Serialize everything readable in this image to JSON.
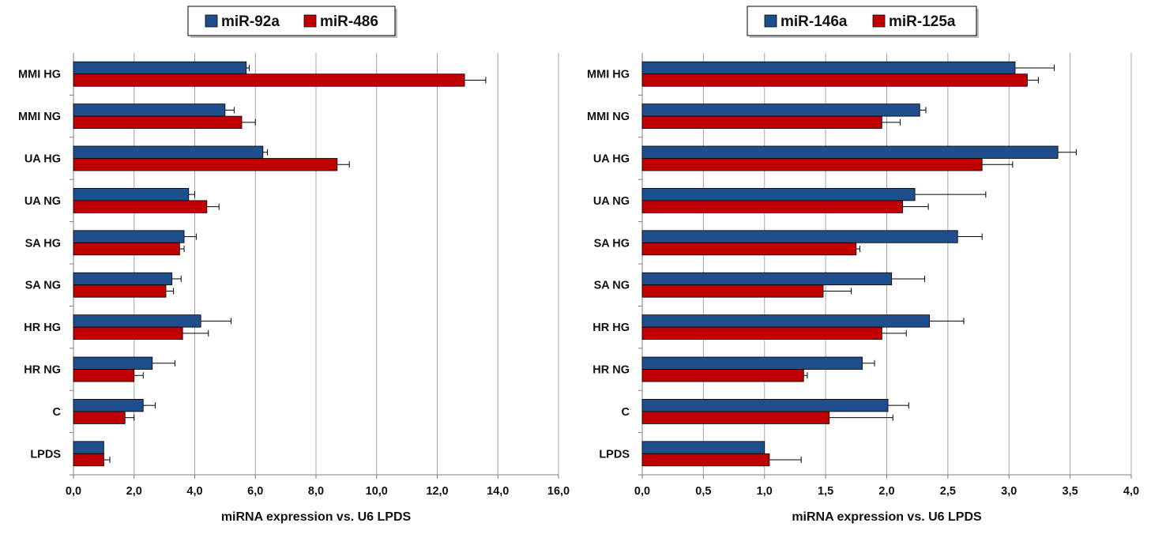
{
  "colors": {
    "series_a": "#1f4e8c",
    "series_b": "#c00000",
    "grid": "#a6a6a6",
    "axis": "#7f7f7f",
    "error": "#000000"
  },
  "chart_data": [
    {
      "type": "bar",
      "orientation": "horizontal",
      "categories": [
        "MMI HG",
        "MMI NG",
        "UA HG",
        "UA NG",
        "SA HG",
        "SA NG",
        "HR HG",
        "HR NG",
        "C",
        "LPDS"
      ],
      "series": [
        {
          "name": "miR-92a",
          "color": "#1f4e8c",
          "values": [
            5.7,
            5.0,
            6.25,
            3.8,
            3.65,
            3.25,
            4.2,
            2.6,
            2.3,
            1.0
          ],
          "errors": [
            0.1,
            0.3,
            0.15,
            0.2,
            0.4,
            0.3,
            1.0,
            0.75,
            0.4,
            0.0
          ]
        },
        {
          "name": "miR-486",
          "color": "#c00000",
          "values": [
            12.9,
            5.55,
            8.7,
            4.4,
            3.5,
            3.05,
            3.6,
            2.0,
            1.7,
            1.0
          ],
          "errors": [
            0.7,
            0.45,
            0.4,
            0.4,
            0.15,
            0.25,
            0.85,
            0.3,
            0.3,
            0.2
          ]
        }
      ],
      "xlim": [
        0,
        16
      ],
      "x_ticks": [
        "0,0",
        "2,0",
        "4,0",
        "6,0",
        "8,0",
        "10,0",
        "12,0",
        "14,0",
        "16,0"
      ],
      "xlabel": "miRNA expression vs. U6 LPDS",
      "grid": true,
      "legend": "top"
    },
    {
      "type": "bar",
      "orientation": "horizontal",
      "categories": [
        "MMI HG",
        "MMI NG",
        "UA HG",
        "UA NG",
        "SA HG",
        "SA NG",
        "HR HG",
        "HR NG",
        "C",
        "LPDS"
      ],
      "series": [
        {
          "name": "miR-146a",
          "color": "#1f4e8c",
          "values": [
            3.05,
            2.27,
            3.4,
            2.23,
            2.58,
            2.04,
            2.35,
            1.8,
            2.01,
            1.0
          ],
          "errors": [
            0.32,
            0.05,
            0.15,
            0.58,
            0.2,
            0.27,
            0.28,
            0.1,
            0.17,
            0.0
          ]
        },
        {
          "name": "miR-125a",
          "color": "#c00000",
          "values": [
            3.15,
            1.96,
            2.78,
            2.13,
            1.75,
            1.48,
            1.96,
            1.32,
            1.53,
            1.04
          ],
          "errors": [
            0.09,
            0.15,
            0.25,
            0.21,
            0.03,
            0.23,
            0.2,
            0.03,
            0.52,
            0.26
          ]
        }
      ],
      "xlim": [
        0,
        4
      ],
      "x_ticks": [
        "0,0",
        "0,5",
        "1,0",
        "1,5",
        "2,0",
        "2,5",
        "3,0",
        "3,5",
        "4,0"
      ],
      "xlabel": "miRNA expression vs. U6 LPDS",
      "grid": true,
      "legend": "top"
    }
  ]
}
